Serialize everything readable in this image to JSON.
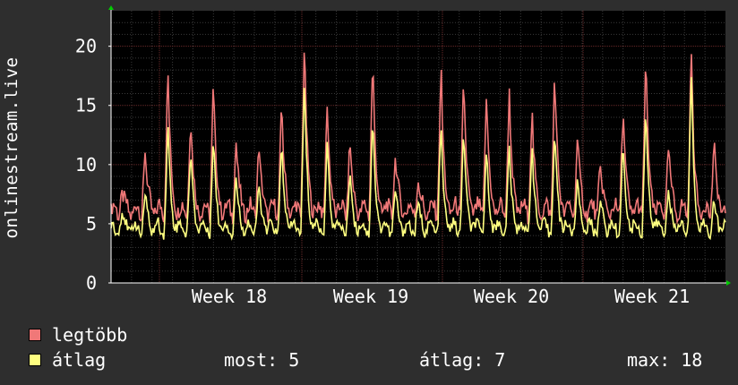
{
  "chart_data": {
    "type": "line",
    "ylabel": "onlinestream.live",
    "ylim": [
      0,
      23
    ],
    "yticks": [
      0,
      5,
      10,
      15,
      20
    ],
    "x_ticks": [
      "Week 18",
      "Week 19",
      "Week 20",
      "Week 21"
    ],
    "grid": true,
    "series": [
      {
        "name": "legtöbb",
        "color": "#f07878"
      },
      {
        "name": "átlag",
        "color": "#ffff80"
      }
    ],
    "peaks": [
      {
        "max": 7.4,
        "avg": 6.0
      },
      {
        "max": 11.2,
        "avg": 7.5
      },
      {
        "max": 18.3,
        "avg": 13.7
      },
      {
        "max": 14.3,
        "avg": 11.5
      },
      {
        "max": 17.0,
        "avg": 12.7
      },
      {
        "max": 12.0,
        "avg": 9.0
      },
      {
        "max": 11.5,
        "avg": 8.4
      },
      {
        "max": 15.3,
        "avg": 12.0
      },
      {
        "max": 20.9,
        "avg": 17.7
      },
      {
        "max": 15.0,
        "avg": 12.0
      },
      {
        "max": 12.0,
        "avg": 9.5
      },
      {
        "max": 19.5,
        "avg": 14.5
      },
      {
        "max": 11.0,
        "avg": 8.0
      },
      {
        "max": 8.5,
        "avg": 6.8
      },
      {
        "max": 18.6,
        "avg": 13.5
      },
      {
        "max": 17.6,
        "avg": 13.2
      },
      {
        "max": 16.3,
        "avg": 11.3
      },
      {
        "max": 16.6,
        "avg": 11.7
      },
      {
        "max": 14.8,
        "avg": 12.0
      },
      {
        "max": 18.4,
        "avg": 13.5
      },
      {
        "max": 12.5,
        "avg": 9.0
      },
      {
        "max": 10.0,
        "avg": 7.0
      },
      {
        "max": 15.0,
        "avg": 12.0
      },
      {
        "max": 19.5,
        "avg": 15.5
      },
      {
        "max": 11.5,
        "avg": 8.0
      },
      {
        "max": 20.0,
        "avg": 18.0
      },
      {
        "max": 11.8,
        "avg": 7.0
      }
    ],
    "legend_stats": {
      "now_label": "most:",
      "now_value": "5",
      "avg_label": "átlag:",
      "avg_value": "7",
      "max_label": "max:",
      "max_value": "18"
    }
  }
}
